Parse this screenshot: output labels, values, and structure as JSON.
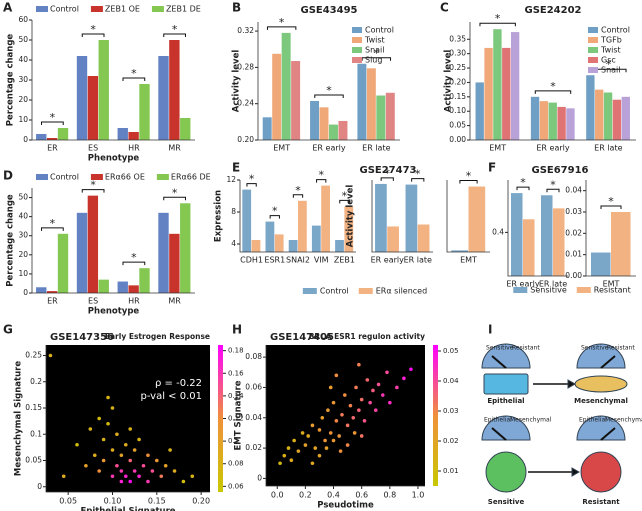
{
  "panel_labels": [
    "A",
    "B",
    "C",
    "D",
    "E",
    "F",
    "G",
    "H",
    "I"
  ],
  "chart_data": [
    {
      "type": "bar",
      "xlabel": "Phenotype",
      "ylabel": "Percentage change",
      "categories": [
        "ER",
        "ES",
        "HR",
        "MR"
      ],
      "series": [
        {
          "name": "Control",
          "color": "#6282c4",
          "values": [
            3,
            42,
            6,
            42
          ]
        },
        {
          "name": "ZEB1 OE",
          "color": "#c8342c",
          "values": [
            1,
            32,
            4,
            50
          ]
        },
        {
          "name": "ZEB1 DE",
          "color": "#84c852",
          "values": [
            6,
            50,
            28,
            11
          ]
        }
      ],
      "ylim": [
        0,
        60
      ],
      "yticks": [
        0,
        10,
        20,
        30,
        40,
        50,
        60
      ],
      "legend": "top",
      "annotation": "*"
    },
    {
      "type": "bar",
      "title": "GSE43495",
      "ylabel": "Activity level",
      "categories": [
        "EMT",
        "ER early",
        "ER late"
      ],
      "series": [
        {
          "name": "Control",
          "color": "#6f9fc4",
          "values": [
            0.225,
            0.243,
            0.284
          ]
        },
        {
          "name": "Twist",
          "color": "#f0a878",
          "values": [
            0.295,
            0.236,
            0.279
          ]
        },
        {
          "name": "Snail",
          "color": "#7cc87c",
          "values": [
            0.318,
            0.217,
            0.249
          ]
        },
        {
          "name": "Slug",
          "color": "#e08484",
          "values": [
            0.287,
            0.221,
            0.252
          ]
        }
      ],
      "ylim": [
        0.2,
        0.33
      ],
      "yticks": [
        {
          "value": 0.2,
          "label": "0.20"
        },
        {
          "value": 0.24,
          "label": "0.24"
        },
        {
          "value": 0.28,
          "label": "0.28"
        },
        {
          "value": 0.32,
          "label": "0.32"
        }
      ],
      "legend": "upper right",
      "annotation": "*"
    },
    {
      "type": "bar",
      "title": "GSE24202",
      "ylabel": "Activity level",
      "categories": [
        "EMT",
        "ER early",
        "ER late"
      ],
      "series": [
        {
          "name": "Control",
          "color": "#6f9fc4",
          "values": [
            0.2,
            0.15,
            0.225
          ]
        },
        {
          "name": "TGFb",
          "color": "#f0a878",
          "values": [
            0.32,
            0.135,
            0.175
          ]
        },
        {
          "name": "Twist",
          "color": "#7cc87c",
          "values": [
            0.385,
            0.13,
            0.165
          ]
        },
        {
          "name": "Gsc",
          "color": "#e07474",
          "values": [
            0.32,
            0.115,
            0.14
          ]
        },
        {
          "name": "Snail",
          "color": "#b8a2d8",
          "values": [
            0.375,
            0.11,
            0.15
          ]
        }
      ],
      "ylim": [
        0,
        0.41
      ],
      "yticks": [
        {
          "value": 0,
          "label": "0.00"
        },
        0.05,
        {
          "value": 0.1,
          "label": "0.10"
        },
        0.15,
        {
          "value": 0.2,
          "label": "0.20"
        },
        0.25,
        {
          "value": 0.3,
          "label": "0.30"
        },
        0.35
      ],
      "legend": "upper right",
      "annotation": "*"
    },
    {
      "type": "bar",
      "xlabel": "Phenotype",
      "ylabel": "Percentage change",
      "categories": [
        "ER",
        "ES",
        "HR",
        "MR"
      ],
      "series": [
        {
          "name": "Control",
          "color": "#6282c4",
          "values": [
            3,
            42,
            6,
            42
          ]
        },
        {
          "name": "ERα66 OE",
          "color": "#c8342c",
          "values": [
            1,
            51,
            4,
            31
          ]
        },
        {
          "name": "ERα66 DE",
          "color": "#84c852",
          "values": [
            31,
            7,
            13,
            47
          ]
        }
      ],
      "ylim": [
        0,
        55
      ],
      "yticks": [
        0,
        10,
        20,
        30,
        40,
        50
      ],
      "legend": "top",
      "annotation": "*"
    },
    {
      "type": "bar",
      "ylabel": "Expression",
      "categories": [
        "CDH1",
        "ESR1",
        "SNAI2",
        "VIM",
        "ZEB1"
      ],
      "series": [
        {
          "name": "Control",
          "color": "#7aa6c8",
          "values": [
            10.8,
            6.8,
            4.5,
            6.3,
            4.5
          ]
        },
        {
          "name": "ERα silenced",
          "color": "#f2b282",
          "values": [
            4.5,
            5.2,
            9.4,
            11.3,
            8.7
          ]
        }
      ],
      "ylim": [
        3,
        12
      ],
      "yticks": [
        4,
        8,
        12
      ],
      "legend": "below",
      "annotation": "*"
    },
    {
      "type": "bar",
      "title": "GSE27473",
      "ylabel": "Activity level",
      "categories": [
        "ER early",
        "ER late"
      ],
      "series": [
        {
          "color": "#7aa6c8",
          "values": [
            0.52,
            0.515
          ]
        },
        {
          "color": "#f2b282",
          "values": [
            0.195,
            0.21
          ]
        }
      ],
      "ylim": [
        0,
        0.55
      ],
      "annotation": "*"
    },
    {
      "type": "bar",
      "categories": [
        "EMT"
      ],
      "series": [
        {
          "color": "#7aa6c8",
          "values": [
            0.005
          ]
        },
        {
          "color": "#f2b282",
          "values": [
            0.2
          ]
        }
      ],
      "ylim": [
        0,
        0.22
      ],
      "annotation": "*"
    },
    {
      "type": "bar",
      "title": "GSE67916",
      "categories": [
        "ER early",
        "ER late"
      ],
      "series": [
        {
          "name": "Sensitive",
          "color": "#7aa6c8",
          "values": [
            0.49,
            0.485
          ]
        },
        {
          "name": "Resistant",
          "color": "#f2b282",
          "values": [
            0.43,
            0.455
          ]
        }
      ],
      "ylim": [
        0.3,
        0.52
      ],
      "yticks": [
        0.4
      ],
      "legend": "below",
      "annotation": "*"
    },
    {
      "type": "bar",
      "categories": [
        "EMT"
      ],
      "series": [
        {
          "color": "#7aa6c8",
          "values": [
            0.011
          ]
        },
        {
          "color": "#f2b282",
          "values": [
            0.03
          ]
        }
      ],
      "ylim": [
        0,
        0.045
      ],
      "yticks": [
        {
          "value": 0,
          "label": "0.00"
        },
        0.01,
        0.02,
        0.03,
        0.04
      ],
      "annotation": "*"
    },
    {
      "type": "scatter",
      "title": "GSE147356",
      "subtitle": "Early Estrogen Response",
      "annotations": [
        "ρ = -0.22",
        "p-val < 0.01"
      ],
      "xlabel": "Epithelial Signature",
      "ylabel": "Mesenchymal Signature",
      "background": "#000000",
      "colormap": [
        "#c8c800",
        "#f0903a",
        "#ff00ff"
      ],
      "x": [
        0.03,
        0.045,
        0.06,
        0.07,
        0.075,
        0.08,
        0.085,
        0.09,
        0.09,
        0.095,
        0.1,
        0.1,
        0.1,
        0.105,
        0.105,
        0.11,
        0.11,
        0.11,
        0.115,
        0.115,
        0.12,
        0.12,
        0.12,
        0.125,
        0.125,
        0.13,
        0.13,
        0.135,
        0.14,
        0.14,
        0.145,
        0.15,
        0.155,
        0.16,
        0.165,
        0.17,
        0.18,
        0.19,
        0.085,
        0.095
      ],
      "values": [
        0.25,
        0.02,
        0.08,
        0.04,
        0.11,
        0.06,
        0.03,
        0.09,
        0.05,
        0.12,
        0.02,
        0.07,
        0.15,
        0.04,
        0.1,
        0.01,
        0.06,
        0.03,
        0.08,
        0.02,
        0.05,
        0.01,
        0.11,
        0.03,
        0.07,
        0.02,
        0.09,
        0.04,
        0.01,
        0.06,
        0.03,
        0.05,
        0.02,
        0.04,
        0.07,
        0.03,
        0.01,
        0.02,
        0.13,
        0.17
      ],
      "color_values": [
        0.08,
        0.09,
        0.07,
        0.1,
        0.08,
        0.09,
        0.12,
        0.08,
        0.11,
        0.07,
        0.16,
        0.09,
        0.08,
        0.15,
        0.09,
        0.17,
        0.1,
        0.16,
        0.09,
        0.17,
        0.14,
        0.18,
        0.08,
        0.16,
        0.1,
        0.17,
        0.08,
        0.15,
        0.16,
        0.12,
        0.15,
        0.11,
        0.13,
        0.1,
        0.08,
        0.09,
        0.07,
        0.08,
        0.07,
        0.08
      ],
      "xlim": [
        0.025,
        0.21
      ],
      "xticks": [
        0.05,
        {
          "value": 0.1,
          "label": "0.10"
        },
        0.15,
        {
          "value": 0.2,
          "label": "0.20"
        }
      ],
      "ylim": [
        -0.01,
        0.27
      ],
      "yticks": [
        0,
        0.05,
        0.1,
        0.15,
        0.2,
        0.25
      ],
      "clim": [
        0.055,
        0.185
      ],
      "cticks": [
        0.06,
        0.08,
        0.1,
        0.12,
        0.14,
        0.16,
        0.18
      ]
    },
    {
      "type": "scatter",
      "title": "GSE147405",
      "subtitle": "BRCA ESR1 regulon activity",
      "xlabel": "Pseudotime",
      "ylabel": "EMT Signature",
      "background": "#000000",
      "colormap": [
        "#c8c800",
        "#f0903a",
        "#ff00ff"
      ],
      "x": [
        0.02,
        0.05,
        0.08,
        0.1,
        0.12,
        0.15,
        0.18,
        0.2,
        0.22,
        0.25,
        0.27,
        0.3,
        0.32,
        0.34,
        0.36,
        0.38,
        0.4,
        0.42,
        0.44,
        0.46,
        0.48,
        0.5,
        0.52,
        0.54,
        0.56,
        0.58,
        0.6,
        0.62,
        0.64,
        0.66,
        0.68,
        0.7,
        0.72,
        0.75,
        0.78,
        0.8,
        0.85,
        0.9,
        0.95,
        0.3,
        0.35,
        0.4,
        0.45,
        0.5,
        0.55,
        0.6,
        0.25,
        0.38,
        0.42,
        0.58
      ],
      "values": [
        0.01,
        0.015,
        0.02,
        0.012,
        0.025,
        0.018,
        0.03,
        0.022,
        0.028,
        0.035,
        0.02,
        0.032,
        0.04,
        0.025,
        0.045,
        0.03,
        0.05,
        0.038,
        0.028,
        0.042,
        0.055,
        0.035,
        0.048,
        0.04,
        0.06,
        0.045,
        0.052,
        0.038,
        0.065,
        0.05,
        0.058,
        0.045,
        0.062,
        0.055,
        0.07,
        0.05,
        0.06,
        0.066,
        0.072,
        0.015,
        0.02,
        0.025,
        0.018,
        0.022,
        0.03,
        0.028,
        0.01,
        0.06,
        0.068,
        0.075
      ],
      "color_values": [
        0.012,
        0.015,
        0.014,
        0.018,
        0.016,
        0.02,
        0.017,
        0.022,
        0.019,
        0.024,
        0.021,
        0.025,
        0.023,
        0.027,
        0.024,
        0.028,
        0.026,
        0.03,
        0.027,
        0.032,
        0.029,
        0.033,
        0.031,
        0.035,
        0.032,
        0.036,
        0.034,
        0.038,
        0.035,
        0.04,
        0.037,
        0.041,
        0.039,
        0.043,
        0.04,
        0.045,
        0.042,
        0.047,
        0.05,
        0.02,
        0.022,
        0.025,
        0.028,
        0.03,
        0.026,
        0.033,
        0.018,
        0.024,
        0.029,
        0.031
      ],
      "xlim": [
        -0.08,
        1.05
      ],
      "xticks": [
        {
          "value": 0,
          "label": "0.0"
        },
        0.2,
        0.4,
        0.6,
        0.8,
        {
          "value": 1,
          "label": "1.0"
        }
      ],
      "ylim": [
        -0.005,
        0.088
      ],
      "yticks": [
        0,
        0.02,
        0.04,
        0.06,
        0.08
      ],
      "clim": [
        0.005,
        0.052
      ],
      "cticks": [
        0.01,
        0.02,
        0.03,
        0.04,
        0.05
      ]
    }
  ],
  "diagram": {
    "top_gauge_labels": [
      "Sensitive",
      "Resistant"
    ],
    "top_cells": [
      "Epithelial",
      "Mesenchymal"
    ],
    "bottom_gauge_labels": [
      "Epithelial",
      "Mesenchymal"
    ],
    "bottom_cells": [
      "Sensitive",
      "Resistant"
    ]
  }
}
